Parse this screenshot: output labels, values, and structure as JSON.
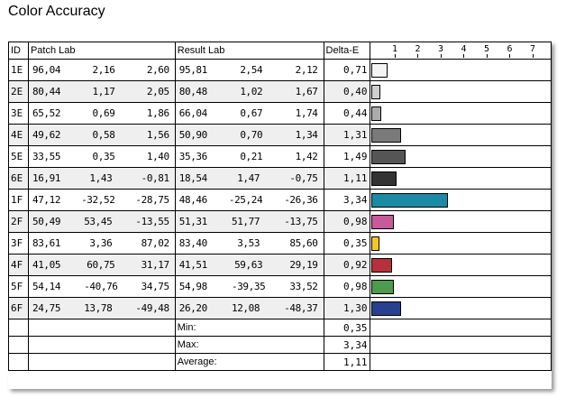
{
  "title": "Color Accuracy",
  "headers": {
    "id": "ID",
    "patch": "Patch Lab",
    "result": "Result Lab",
    "delta": "Delta-E"
  },
  "axis_ticks": [
    "1",
    "2",
    "3",
    "4",
    "5",
    "6",
    "7"
  ],
  "rows": [
    {
      "id": "1E",
      "patch": [
        "96,04",
        "2,16",
        "2,60"
      ],
      "result": [
        "95,81",
        "2,54",
        "2,12"
      ],
      "delta": "0,71"
    },
    {
      "id": "2E",
      "patch": [
        "80,44",
        "1,17",
        "2,05"
      ],
      "result": [
        "80,48",
        "1,02",
        "1,67"
      ],
      "delta": "0,40"
    },
    {
      "id": "3E",
      "patch": [
        "65,52",
        "0,69",
        "1,86"
      ],
      "result": [
        "66,04",
        "0,67",
        "1,74"
      ],
      "delta": "0,44"
    },
    {
      "id": "4E",
      "patch": [
        "49,62",
        "0,58",
        "1,56"
      ],
      "result": [
        "50,90",
        "0,70",
        "1,34"
      ],
      "delta": "1,31"
    },
    {
      "id": "5E",
      "patch": [
        "33,55",
        "0,35",
        "1,40"
      ],
      "result": [
        "35,36",
        "0,21",
        "1,42"
      ],
      "delta": "1,49"
    },
    {
      "id": "6E",
      "patch": [
        "16,91",
        "1,43",
        "-0,81"
      ],
      "result": [
        "18,54",
        "1,47",
        "-0,75"
      ],
      "delta": "1,11"
    },
    {
      "id": "1F",
      "patch": [
        "47,12",
        "-32,52",
        "-28,75"
      ],
      "result": [
        "48,46",
        "-25,24",
        "-26,36"
      ],
      "delta": "3,34"
    },
    {
      "id": "2F",
      "patch": [
        "50,49",
        "53,45",
        "-13,55"
      ],
      "result": [
        "51,31",
        "51,77",
        "-13,75"
      ],
      "delta": "0,98"
    },
    {
      "id": "3F",
      "patch": [
        "83,61",
        "3,36",
        "87,02"
      ],
      "result": [
        "83,40",
        "3,53",
        "85,60"
      ],
      "delta": "0,35"
    },
    {
      "id": "4F",
      "patch": [
        "41,05",
        "60,75",
        "31,17"
      ],
      "result": [
        "41,51",
        "59,63",
        "29,19"
      ],
      "delta": "0,92"
    },
    {
      "id": "5F",
      "patch": [
        "54,14",
        "-40,76",
        "34,75"
      ],
      "result": [
        "54,98",
        "-39,35",
        "33,52"
      ],
      "delta": "0,98"
    },
    {
      "id": "6F",
      "patch": [
        "24,75",
        "13,78",
        "-49,48"
      ],
      "result": [
        "26,20",
        "12,08",
        "-48,37"
      ],
      "delta": "1,30"
    }
  ],
  "summary": [
    {
      "label": "Min:",
      "value": "0,35"
    },
    {
      "label": "Max:",
      "value": "3,34"
    },
    {
      "label": "Average:",
      "value": "1,11"
    }
  ],
  "chart_data": {
    "type": "bar",
    "categories": [
      "1E",
      "2E",
      "3E",
      "4E",
      "5E",
      "6E",
      "1F",
      "2F",
      "3F",
      "4F",
      "5F",
      "6F"
    ],
    "values": [
      0.71,
      0.4,
      0.44,
      1.31,
      1.49,
      1.11,
      3.34,
      0.98,
      0.35,
      0.92,
      0.98,
      1.3
    ],
    "colors": [
      "#f4f4f4",
      "#cfcfcf",
      "#acacac",
      "#7a7a7a",
      "#555555",
      "#333333",
      "#1a8aa5",
      "#c75a9a",
      "#f2c52a",
      "#b9303d",
      "#4e9a4e",
      "#27418f"
    ],
    "xlim": [
      0,
      7.5
    ],
    "orientation": "horizontal"
  }
}
